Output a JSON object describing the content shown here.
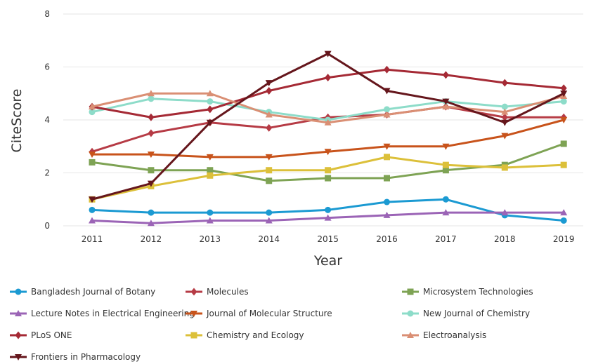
{
  "chart_data": {
    "type": "line",
    "xlabel": "Year",
    "ylabel": "CiteScore",
    "x": [
      "2011",
      "2012",
      "2013",
      "2014",
      "2015",
      "2016",
      "2017",
      "2018",
      "2019"
    ],
    "ylim": [
      0,
      8
    ],
    "yticks": [
      "0",
      "2",
      "4",
      "6",
      "8"
    ],
    "grid": "horizontal",
    "legend_position": "bottom",
    "series": [
      {
        "name": "Bangladesh Journal of Botany",
        "color": "#1b9ad2",
        "marker": "circle",
        "values": [
          0.6,
          0.5,
          0.5,
          0.5,
          0.6,
          0.9,
          1.0,
          0.4,
          0.2
        ]
      },
      {
        "name": "Molecules",
        "color": "#b63b45",
        "marker": "diamond",
        "values": [
          2.8,
          3.5,
          3.9,
          3.7,
          4.1,
          4.2,
          4.5,
          4.1,
          4.1
        ]
      },
      {
        "name": "Microsystem Technologies",
        "color": "#7ea354",
        "marker": "square",
        "values": [
          2.4,
          2.1,
          2.1,
          1.7,
          1.8,
          1.8,
          2.1,
          2.3,
          3.1
        ]
      },
      {
        "name": "Lecture Notes in Electrical Engineering",
        "color": "#9b64b6",
        "marker": "triangle-up",
        "values": [
          0.2,
          0.1,
          0.2,
          0.2,
          0.3,
          0.4,
          0.5,
          0.5,
          0.5
        ]
      },
      {
        "name": "Journal of Molecular Structure",
        "color": "#c8531b",
        "marker": "triangle-down",
        "values": [
          2.7,
          2.7,
          2.6,
          2.6,
          2.8,
          3.0,
          3.0,
          3.4,
          4.0
        ]
      },
      {
        "name": "New Journal of Chemistry",
        "color": "#8ddcc9",
        "marker": "circle",
        "values": [
          4.3,
          4.8,
          4.7,
          4.3,
          4.0,
          4.4,
          4.7,
          4.5,
          4.7
        ]
      },
      {
        "name": "PLoS ONE",
        "color": "#a52a35",
        "marker": "diamond",
        "values": [
          4.5,
          4.1,
          4.4,
          5.1,
          5.6,
          5.9,
          5.7,
          5.4,
          5.2
        ]
      },
      {
        "name": "Chemistry and Ecology",
        "color": "#dcc03a",
        "marker": "square",
        "values": [
          1.0,
          1.5,
          1.9,
          2.1,
          2.1,
          2.6,
          2.3,
          2.2,
          2.3
        ]
      },
      {
        "name": "Electroanalysis",
        "color": "#da8f74",
        "marker": "triangle-up",
        "values": [
          4.5,
          5.0,
          5.0,
          4.2,
          3.9,
          4.2,
          4.5,
          4.3,
          4.9
        ]
      },
      {
        "name": "Frontiers in Pharmacology",
        "color": "#65161c",
        "marker": "triangle-down",
        "values": [
          1.0,
          1.6,
          3.9,
          5.4,
          6.5,
          5.1,
          4.7,
          3.9,
          5.0
        ]
      }
    ]
  }
}
